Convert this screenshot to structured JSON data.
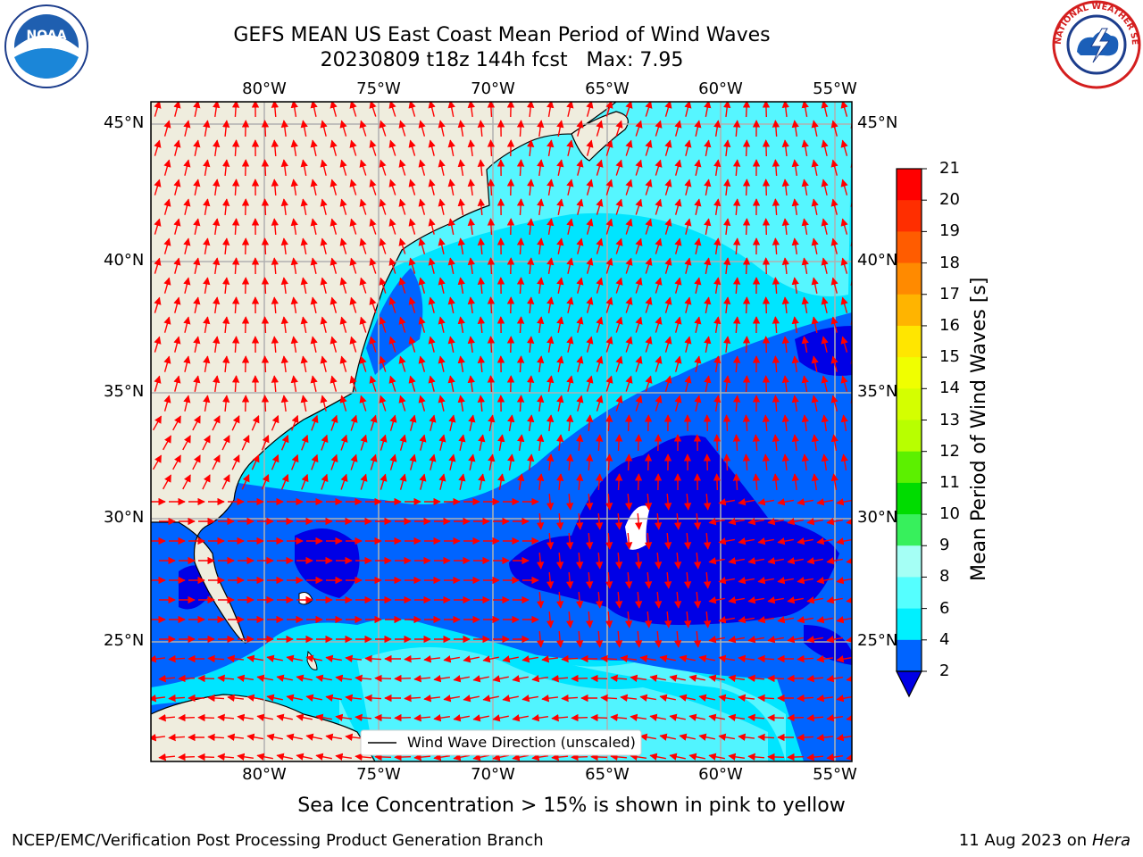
{
  "title": {
    "line1": "GEFS MEAN US East Coast Mean Period of Wind Waves",
    "line2": "20230809 t18z 144h fcst   Max: 7.95"
  },
  "map": {
    "lon_labels": [
      "80°W",
      "75°W",
      "70°W",
      "65°W",
      "60°W",
      "55°W"
    ],
    "lat_labels": [
      "45°N",
      "40°N",
      "35°N",
      "30°N",
      "25°N"
    ],
    "legend_label": "Wind Wave Direction (unscaled)",
    "colors": {
      "land": "#efedde",
      "c2": "#0064ff",
      "c4": "#00e5ff",
      "c6": "#5ff7ff",
      "lt2": "#0000e6",
      "arrow": "#ff0000",
      "grid": "#b0b0b0"
    }
  },
  "colorbar": {
    "title": "Mean Period of Wind Waves [s]",
    "ticks": [
      "21",
      "20",
      "19",
      "18",
      "17",
      "16",
      "15",
      "14",
      "13",
      "12",
      "11",
      "10",
      "9",
      "8",
      "6",
      "4",
      "2"
    ],
    "colors": [
      "#ff0000",
      "#ff2e00",
      "#ff5c00",
      "#ff8a00",
      "#ffb400",
      "#ffe600",
      "#f0ff00",
      "#d4ff00",
      "#b8ff00",
      "#5cf000",
      "#00dc00",
      "#37f05c",
      "#a5fff5",
      "#55ffff",
      "#00f0ff",
      "#0064ff"
    ],
    "extend_color": "#0000e6"
  },
  "footer": {
    "note": "Sea Ice Concentration > 15% is shown in pink to yellow",
    "left": "NCEP/EMC/Verification Post Processing Product Generation Branch",
    "right_date": "11 Aug 2023 on",
    "right_host": "Hera"
  },
  "logos": {
    "noaa_text": "NOAA",
    "nws_text": "NATIONAL WEATHER SERVICE"
  }
}
